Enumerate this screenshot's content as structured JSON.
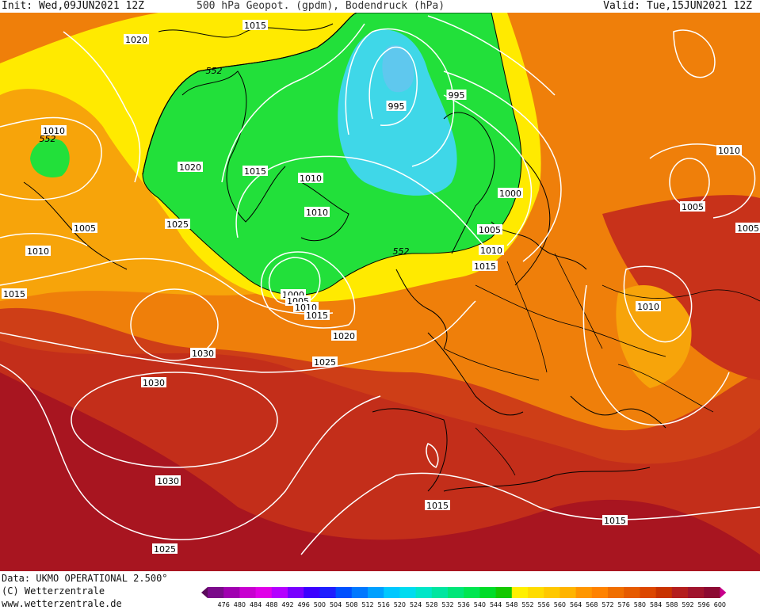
{
  "header": {
    "init": "Init: Wed,09JUN2021 12Z",
    "title": "500 hPa Geopot. (gpdm), Bodendruck (hPa)",
    "valid": "Valid: Tue,15JUN2021 12Z"
  },
  "footer": {
    "data": "Data: UKMO OPERATIONAL 2.500°",
    "copyright": "(C) Wetterzentrale",
    "url": "www.wetterzentrale.de"
  },
  "legend": {
    "ticks": [
      "476",
      "480",
      "484",
      "488",
      "492",
      "496",
      "500",
      "504",
      "508",
      "512",
      "516",
      "520",
      "524",
      "528",
      "532",
      "536",
      "540",
      "544",
      "548",
      "552",
      "556",
      "560",
      "564",
      "568",
      "572",
      "576",
      "580",
      "584",
      "588",
      "592",
      "596",
      "600"
    ],
    "colors": [
      "#5a0a5a",
      "#7a0a8a",
      "#a000b0",
      "#c800d0",
      "#e000e8",
      "#b400ff",
      "#7800ff",
      "#3c00ff",
      "#1e1eff",
      "#0050ff",
      "#0078ff",
      "#00a0ff",
      "#00c8ff",
      "#00dcf0",
      "#00e6c8",
      "#00e6a0",
      "#00e678",
      "#00e650",
      "#00dc28",
      "#14c800",
      "#fff000",
      "#ffdc00",
      "#ffc800",
      "#ffb400",
      "#ff9600",
      "#ff8200",
      "#f06e00",
      "#e65a00",
      "#dc4600",
      "#c83200",
      "#b41e1e",
      "#a0142d",
      "#8c0a32",
      "#c8008c"
    ]
  },
  "map": {
    "colors": {
      "green": "#22e03a",
      "cyan": "#3fd7e8",
      "blue": "#5fc8ee",
      "yellow": "#ffea00",
      "orange_light": "#f7a40a",
      "orange": "#ef7f0a",
      "red_orange": "#dd5012",
      "red": "#c8321a",
      "dark_red": "#a81520",
      "contour": "#ffffff",
      "coast": "#000000"
    },
    "isobar_labels": [
      {
        "text": "1015"
      },
      {
        "text": "1020"
      },
      {
        "text": "1010"
      },
      {
        "text": "1005"
      },
      {
        "text": "1010"
      },
      {
        "text": "1015"
      },
      {
        "text": "1025"
      },
      {
        "text": "1020"
      },
      {
        "text": "1015"
      },
      {
        "text": "1010"
      },
      {
        "text": "1010"
      },
      {
        "text": "995"
      },
      {
        "text": "995"
      },
      {
        "text": "1000"
      },
      {
        "text": "1005"
      },
      {
        "text": "1010"
      },
      {
        "text": "1015"
      },
      {
        "text": "1000"
      },
      {
        "text": "1005"
      },
      {
        "text": "1010"
      },
      {
        "text": "1015"
      },
      {
        "text": "1020"
      },
      {
        "text": "1025"
      },
      {
        "text": "1030"
      },
      {
        "text": "1030"
      },
      {
        "text": "1030"
      },
      {
        "text": "1025"
      },
      {
        "text": "1015"
      },
      {
        "text": "1015"
      },
      {
        "text": "1010"
      },
      {
        "text": "1005"
      },
      {
        "text": "1005"
      },
      {
        "text": "1010"
      }
    ],
    "height_labels": [
      {
        "text": "552"
      },
      {
        "text": "552"
      },
      {
        "text": "552"
      }
    ]
  }
}
